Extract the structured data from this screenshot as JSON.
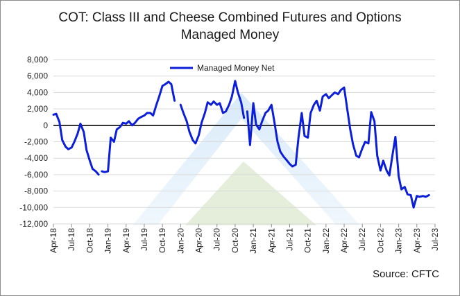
{
  "chart_data": {
    "type": "line",
    "title_line1": "COT: Class III and Cheese Combined Futures and Options",
    "title_line2": "Managed Money",
    "source": "Source: CFTC",
    "legend_placement": "top-center",
    "grid": true,
    "grid_color": "#d9d9d9",
    "series_color": "#0a1edb",
    "ylim": [
      -12000,
      8000
    ],
    "y_ticks": [
      8000,
      6000,
      4000,
      2000,
      0,
      -2000,
      -4000,
      -6000,
      -8000,
      -10000,
      -12000
    ],
    "y_tick_labels": [
      "8,000",
      "6,000",
      "4,000",
      "2,000",
      "0",
      "-2,000",
      "-4,000",
      "-6,000",
      "-8,000",
      "-10,000",
      "-12,000"
    ],
    "x_ticks": [
      "2018-04",
      "2018-07",
      "2018-10",
      "2019-01",
      "2019-04",
      "2019-07",
      "2019-10",
      "2020-01",
      "2020-04",
      "2020-07",
      "2020-10",
      "2021-01",
      "2021-04",
      "2021-07",
      "2021-10",
      "2022-01",
      "2022-04",
      "2022-07",
      "2022-10",
      "2023-01",
      "2023-04",
      "2023-07"
    ],
    "x_tick_labels": [
      "Apr-18",
      "Jul-18",
      "Oct-18",
      "Jan-19",
      "Apr-19",
      "Jul-19",
      "Oct-19",
      "Jan-20",
      "Apr-20",
      "Jul-20",
      "Oct-20",
      "Jan-21",
      "Apr-21",
      "Jul-21",
      "Oct-21",
      "Jan-22",
      "Apr-22",
      "Jul-22",
      "Oct-22",
      "Jan-23",
      "Apr-23",
      "Jul-23"
    ],
    "xlim": [
      "2018-04",
      "2023-07"
    ],
    "series": [
      {
        "name": "Managed Money Net",
        "segments": [
          {
            "x": [
              "2018-04",
              "2018-04-15",
              "2018-05",
              "2018-05-15",
              "2018-06",
              "2018-06-15",
              "2018-07",
              "2018-07-15",
              "2018-08",
              "2018-08-15",
              "2018-09",
              "2018-09-15",
              "2018-10",
              "2018-10-15",
              "2018-11",
              "2018-11-15"
            ],
            "y": [
              1300,
              1400,
              400,
              -1800,
              -2600,
              -2900,
              -2700,
              -2000,
              -1000,
              200,
              -800,
              -3000,
              -4300,
              -5300,
              -5600,
              -6000
            ]
          },
          {
            "x": [
              "2018-12",
              "2018-12-15",
              "2019-01",
              "2019-01-15",
              "2019-02",
              "2019-02-15",
              "2019-03",
              "2019-03-15",
              "2019-04",
              "2019-04-15",
              "2019-05",
              "2019-05-15",
              "2019-06",
              "2019-06-15",
              "2019-07",
              "2019-07-15",
              "2019-08",
              "2019-08-15",
              "2019-09",
              "2019-09-15",
              "2019-10",
              "2019-10-15",
              "2019-11",
              "2019-11-15",
              "2019-12"
            ],
            "y": [
              -5600,
              -5700,
              -5600,
              -1500,
              -2000,
              -500,
              -200,
              300,
              200,
              500,
              0,
              300,
              800,
              1000,
              1200,
              1500,
              1500,
              1200,
              2500,
              3500,
              4800,
              5000,
              5300,
              5000,
              3000
            ]
          },
          {
            "x": [
              "2020-01",
              "2020-01-15",
              "2020-02",
              "2020-02-15",
              "2020-03",
              "2020-03-15",
              "2020-04",
              "2020-04-15",
              "2020-05",
              "2020-05-15",
              "2020-06",
              "2020-06-15",
              "2020-07",
              "2020-07-15",
              "2020-08",
              "2020-08-15",
              "2020-09",
              "2020-09-15",
              "2020-10",
              "2020-10-15",
              "2020-11",
              "2020-11-15"
            ],
            "y": [
              2500,
              1500,
              500,
              -800,
              -1800,
              -2200,
              -1200,
              300,
              1500,
              2800,
              2500,
              2900,
              2500,
              2700,
              1500,
              1700,
              2500,
              3500,
              5400,
              4000,
              2800,
              900
            ]
          },
          {
            "x": [
              "2020-12",
              "2020-12-15",
              "2021-01",
              "2021-01-15",
              "2021-02",
              "2021-02-15",
              "2021-03",
              "2021-03-15",
              "2021-04",
              "2021-04-15",
              "2021-05",
              "2021-05-15",
              "2021-06",
              "2021-06-15",
              "2021-07",
              "2021-07-15",
              "2021-08",
              "2021-08-15",
              "2021-09",
              "2021-09-15",
              "2021-10",
              "2021-10-15",
              "2021-11",
              "2021-11-15",
              "2021-12",
              "2021-12-15",
              "2022-01",
              "2022-01-15",
              "2022-02",
              "2022-02-15",
              "2022-03",
              "2022-03-15",
              "2022-04",
              "2022-04-15",
              "2022-05",
              "2022-05-15",
              "2022-06",
              "2022-06-15",
              "2022-07",
              "2022-07-15",
              "2022-08",
              "2022-08-15",
              "2022-09",
              "2022-09-15",
              "2022-10",
              "2022-10-15",
              "2022-11",
              "2022-11-15",
              "2022-12",
              "2022-12-15",
              "2023-01",
              "2023-01-15",
              "2023-02",
              "2023-02-15",
              "2023-03",
              "2023-03-15",
              "2023-04",
              "2023-04-15",
              "2023-05",
              "2023-05-15",
              "2023-06"
            ],
            "y": [
              1700,
              -2400,
              2700,
              100,
              -500,
              500,
              1500,
              1800,
              2500,
              500,
              -2000,
              -3200,
              -3800,
              -4200,
              -4700,
              -5000,
              -4800,
              -1500,
              1500,
              -1300,
              -1500,
              1500,
              2500,
              3000,
              1800,
              3500,
              3800,
              3300,
              3700,
              4000,
              3800,
              4300,
              4600,
              2200,
              -500,
              -2300,
              -3700,
              -3900,
              -2800,
              -2000,
              -2200,
              1600,
              500,
              -3700,
              -5500,
              -4300,
              -5500,
              -6100,
              -3500,
              -1400,
              -6200,
              -7800,
              -7500,
              -8400,
              -8500,
              -10000,
              -8600,
              -8700,
              -8600,
              -8700,
              -8500
            ]
          }
        ]
      }
    ]
  }
}
